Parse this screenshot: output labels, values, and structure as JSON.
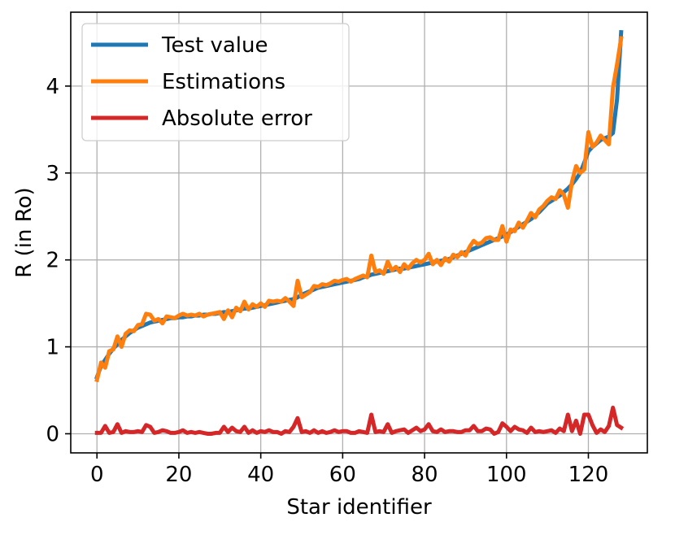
{
  "chart_data": {
    "type": "line",
    "title": "",
    "xlabel": "Star identifier",
    "ylabel": "R (in Ro)",
    "xlim": [
      -6.4,
      134.4
    ],
    "ylim": [
      -0.22,
      4.85
    ],
    "xticks": [
      0,
      20,
      40,
      60,
      80,
      100,
      120
    ],
    "yticks": [
      0,
      1,
      2,
      3,
      4
    ],
    "grid": true,
    "legend_position": "top-left",
    "series": [
      {
        "name": "Test value",
        "color": "#1f77b4",
        "x": [
          0,
          1,
          2,
          3,
          4,
          5,
          6,
          7,
          8,
          9,
          10,
          11,
          12,
          13,
          14,
          15,
          16,
          17,
          18,
          19,
          20,
          21,
          22,
          23,
          24,
          25,
          26,
          27,
          28,
          29,
          30,
          31,
          32,
          33,
          34,
          35,
          36,
          37,
          38,
          39,
          40,
          41,
          42,
          43,
          44,
          45,
          46,
          47,
          48,
          49,
          50,
          51,
          52,
          53,
          54,
          55,
          56,
          57,
          58,
          59,
          60,
          61,
          62,
          63,
          64,
          65,
          66,
          67,
          68,
          69,
          70,
          71,
          72,
          73,
          74,
          75,
          76,
          77,
          78,
          79,
          80,
          81,
          82,
          83,
          84,
          85,
          86,
          87,
          88,
          89,
          90,
          91,
          92,
          93,
          94,
          95,
          96,
          97,
          98,
          99,
          100,
          101,
          102,
          103,
          104,
          105,
          106,
          107,
          108,
          109,
          110,
          111,
          112,
          113,
          114,
          115,
          116,
          117,
          118,
          119,
          120,
          121,
          122,
          123,
          124,
          125,
          126,
          127,
          128
        ],
        "values": [
          0.65,
          0.78,
          0.85,
          0.92,
          0.98,
          1.03,
          1.08,
          1.12,
          1.16,
          1.19,
          1.22,
          1.24,
          1.26,
          1.28,
          1.29,
          1.3,
          1.31,
          1.32,
          1.33,
          1.33,
          1.34,
          1.34,
          1.35,
          1.35,
          1.36,
          1.36,
          1.37,
          1.37,
          1.38,
          1.38,
          1.39,
          1.4,
          1.4,
          1.41,
          1.42,
          1.43,
          1.44,
          1.44,
          1.45,
          1.46,
          1.47,
          1.48,
          1.49,
          1.5,
          1.51,
          1.52,
          1.53,
          1.54,
          1.55,
          1.57,
          1.6,
          1.62,
          1.64,
          1.66,
          1.68,
          1.69,
          1.7,
          1.71,
          1.72,
          1.73,
          1.74,
          1.75,
          1.76,
          1.77,
          1.78,
          1.8,
          1.81,
          1.83,
          1.84,
          1.85,
          1.86,
          1.87,
          1.88,
          1.89,
          1.9,
          1.9,
          1.91,
          1.92,
          1.93,
          1.94,
          1.95,
          1.96,
          1.97,
          1.98,
          1.99,
          2.0,
          2.01,
          2.03,
          2.05,
          2.07,
          2.09,
          2.11,
          2.13,
          2.15,
          2.17,
          2.19,
          2.21,
          2.23,
          2.25,
          2.27,
          2.29,
          2.32,
          2.35,
          2.38,
          2.41,
          2.44,
          2.47,
          2.51,
          2.55,
          2.6,
          2.65,
          2.68,
          2.71,
          2.74,
          2.78,
          2.82,
          2.87,
          2.93,
          3.0,
          3.12,
          3.25,
          3.3,
          3.34,
          3.38,
          3.4,
          3.42,
          3.46,
          3.85,
          4.62
        ]
      },
      {
        "name": "Estimations",
        "color": "#ff7f0e",
        "x": [
          0,
          1,
          2,
          3,
          4,
          5,
          6,
          7,
          8,
          9,
          10,
          11,
          12,
          13,
          14,
          15,
          16,
          17,
          18,
          19,
          20,
          21,
          22,
          23,
          24,
          25,
          26,
          27,
          28,
          29,
          30,
          31,
          32,
          33,
          34,
          35,
          36,
          37,
          38,
          39,
          40,
          41,
          42,
          43,
          44,
          45,
          46,
          47,
          48,
          49,
          50,
          51,
          52,
          53,
          54,
          55,
          56,
          57,
          58,
          59,
          60,
          61,
          62,
          63,
          64,
          65,
          66,
          67,
          68,
          69,
          70,
          71,
          72,
          73,
          74,
          75,
          76,
          77,
          78,
          79,
          80,
          81,
          82,
          83,
          84,
          85,
          86,
          87,
          88,
          89,
          90,
          91,
          92,
          93,
          94,
          95,
          96,
          97,
          98,
          99,
          100,
          101,
          102,
          103,
          104,
          105,
          106,
          107,
          108,
          109,
          110,
          111,
          112,
          113,
          114,
          115,
          116,
          117,
          118,
          119,
          120,
          121,
          122,
          123,
          124,
          125,
          126,
          127,
          128
        ],
        "values": [
          0.62,
          0.82,
          0.76,
          0.95,
          0.97,
          1.12,
          1.0,
          1.15,
          1.19,
          1.18,
          1.25,
          1.26,
          1.38,
          1.37,
          1.3,
          1.32,
          1.27,
          1.35,
          1.34,
          1.33,
          1.36,
          1.38,
          1.36,
          1.37,
          1.36,
          1.38,
          1.35,
          1.37,
          1.38,
          1.39,
          1.4,
          1.32,
          1.42,
          1.34,
          1.45,
          1.41,
          1.52,
          1.43,
          1.49,
          1.46,
          1.5,
          1.46,
          1.53,
          1.52,
          1.53,
          1.52,
          1.56,
          1.52,
          1.47,
          1.76,
          1.57,
          1.6,
          1.63,
          1.7,
          1.69,
          1.72,
          1.71,
          1.73,
          1.76,
          1.75,
          1.77,
          1.78,
          1.75,
          1.78,
          1.8,
          1.82,
          1.8,
          2.05,
          1.86,
          1.88,
          1.84,
          1.98,
          1.88,
          1.92,
          1.86,
          1.95,
          1.9,
          1.96,
          2.0,
          1.97,
          2.0,
          2.07,
          1.95,
          2.0,
          1.94,
          2.02,
          1.98,
          2.06,
          2.03,
          2.09,
          2.05,
          2.15,
          2.22,
          2.18,
          2.2,
          2.25,
          2.26,
          2.23,
          2.23,
          2.39,
          2.21,
          2.35,
          2.33,
          2.43,
          2.37,
          2.45,
          2.54,
          2.49,
          2.58,
          2.62,
          2.68,
          2.72,
          2.7,
          2.8,
          2.75,
          2.6,
          2.9,
          3.08,
          3.0,
          3.04,
          3.47,
          3.3,
          3.35,
          3.43,
          3.38,
          3.33,
          3.98,
          4.25,
          4.55
        ]
      },
      {
        "name": "Absolute error",
        "color": "#d62728",
        "x": [
          0,
          1,
          2,
          3,
          4,
          5,
          6,
          7,
          8,
          9,
          10,
          11,
          12,
          13,
          14,
          15,
          16,
          17,
          18,
          19,
          20,
          21,
          22,
          23,
          24,
          25,
          26,
          27,
          28,
          29,
          30,
          31,
          32,
          33,
          34,
          35,
          36,
          37,
          38,
          39,
          40,
          41,
          42,
          43,
          44,
          45,
          46,
          47,
          48,
          49,
          50,
          51,
          52,
          53,
          54,
          55,
          56,
          57,
          58,
          59,
          60,
          61,
          62,
          63,
          64,
          65,
          66,
          67,
          68,
          69,
          70,
          71,
          72,
          73,
          74,
          75,
          76,
          77,
          78,
          79,
          80,
          81,
          82,
          83,
          84,
          85,
          86,
          87,
          88,
          89,
          90,
          91,
          92,
          93,
          94,
          95,
          96,
          97,
          98,
          99,
          100,
          101,
          102,
          103,
          104,
          105,
          106,
          107,
          108,
          109,
          110,
          111,
          112,
          113,
          114,
          115,
          116,
          117,
          118,
          119,
          120,
          121,
          122,
          123,
          124,
          125,
          126,
          127,
          128
        ],
        "values": [
          0.01,
          0.01,
          0.09,
          0.01,
          0.02,
          0.11,
          0.01,
          0.03,
          0.02,
          0.02,
          0.03,
          0.02,
          0.1,
          0.08,
          0.01,
          0.02,
          0.04,
          0.03,
          0.01,
          0.01,
          0.02,
          0.04,
          0.01,
          0.02,
          0.01,
          0.02,
          0.01,
          0.0,
          0.0,
          0.01,
          0.01,
          0.08,
          0.02,
          0.07,
          0.03,
          0.02,
          0.08,
          0.01,
          0.04,
          0.01,
          0.03,
          0.02,
          0.04,
          0.02,
          0.02,
          0.0,
          0.03,
          0.02,
          0.08,
          0.18,
          0.02,
          0.03,
          0.01,
          0.04,
          0.01,
          0.03,
          0.01,
          0.02,
          0.04,
          0.02,
          0.03,
          0.03,
          0.01,
          0.01,
          0.03,
          0.02,
          0.01,
          0.22,
          0.02,
          0.03,
          0.02,
          0.11,
          0.01,
          0.03,
          0.04,
          0.05,
          0.01,
          0.04,
          0.07,
          0.03,
          0.05,
          0.11,
          0.03,
          0.02,
          0.05,
          0.02,
          0.03,
          0.03,
          0.02,
          0.02,
          0.04,
          0.04,
          0.09,
          0.03,
          0.03,
          0.06,
          0.05,
          0.0,
          0.02,
          0.12,
          0.08,
          0.03,
          0.08,
          0.05,
          0.04,
          0.01,
          0.07,
          0.02,
          0.03,
          0.02,
          0.03,
          0.04,
          0.01,
          0.06,
          0.03,
          0.22,
          0.03,
          0.15,
          0.0,
          0.22,
          0.22,
          0.1,
          0.01,
          0.05,
          0.02,
          0.09,
          0.3,
          0.1,
          0.07
        ]
      }
    ]
  }
}
